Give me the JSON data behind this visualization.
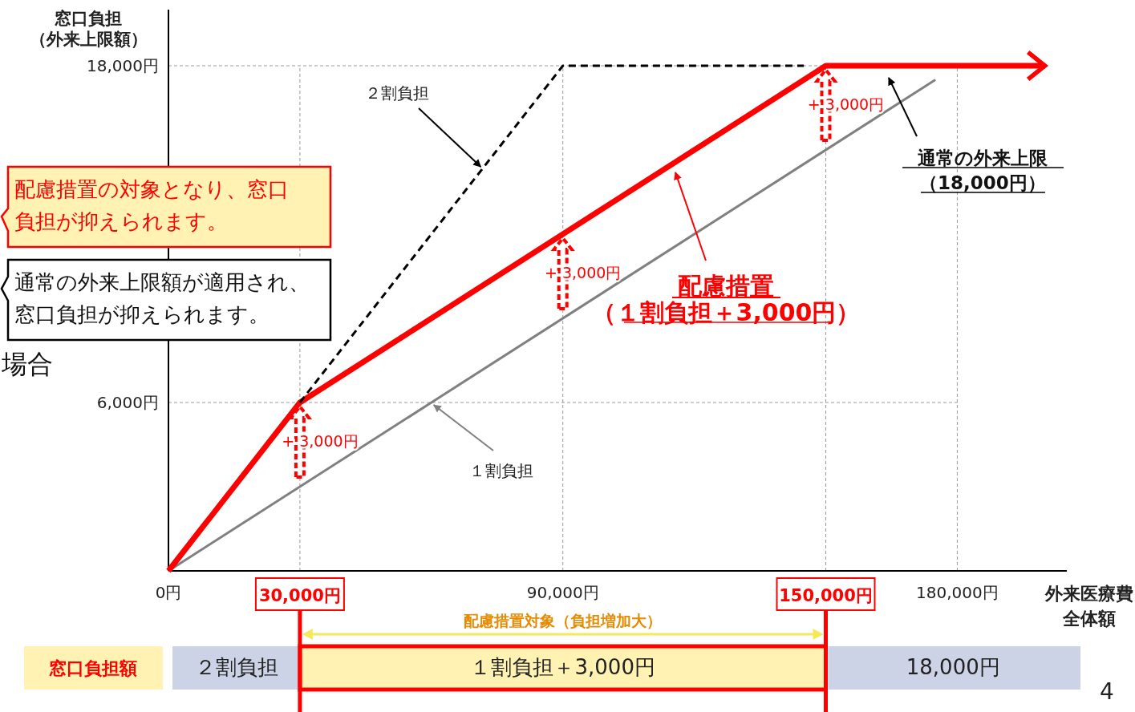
{
  "chart_data": {
    "type": "line",
    "ylabel": "窓口負担（外来上限額）",
    "xlabel": "外来医療費全体額",
    "xlim": [
      0,
      205000
    ],
    "ylim": [
      0,
      20000
    ],
    "xticks": [
      {
        "value": 0,
        "label": "0円"
      },
      {
        "value": 30000,
        "label": "30,000円"
      },
      {
        "value": 90000,
        "label": "90,000円"
      },
      {
        "value": 150000,
        "label": "150,000円"
      },
      {
        "value": 180000,
        "label": "180,000円"
      }
    ],
    "yticks": [
      {
        "value": 6000,
        "label": "6,000円"
      },
      {
        "value": 18000,
        "label": "18,000円"
      }
    ],
    "grid": true,
    "series": [
      {
        "color": "#808080",
        "line_style": "solid",
        "x": [
          0,
          175000
        ],
        "values": [
          0,
          17500
        ]
      },
      {
        "color": "#ff0000",
        "line_style": "solid",
        "x": [
          0,
          30000,
          150000,
          200000
        ],
        "values": [
          0,
          6000,
          18000,
          18000
        ]
      },
      {
        "color": "#000000",
        "line_style": "dashed",
        "x": [
          30000,
          90000,
          145000
        ],
        "values": [
          6000,
          18000,
          18000
        ]
      }
    ],
    "annotations": [
      {
        "text": "２割負担",
        "x": 72000,
        "y": 14400
      },
      {
        "text": "１割負担",
        "x": 60000,
        "y": 6000
      },
      {
        "text": "+ 3,000円",
        "x": 30000,
        "y": 6000
      },
      {
        "text": "+ 3,000円",
        "x": 90000,
        "y": 12000
      },
      {
        "text": "+ 3,000円",
        "x": 150000,
        "y": 18000
      },
      "配慮措置（１割負担＋3,000円）",
      "通常の外来上限（18,000円）",
      "配慮措置の対象となり、窓口負担が抑えられます。",
      "通常の外来上限額が適用され、窓口負担が抑えられます。",
      "場合",
      "窓口負担額",
      "２割負担",
      "１割負担＋3,000円",
      "18,000円",
      "4",
      "配慮措置対象（負担増加大）"
    ]
  }
}
